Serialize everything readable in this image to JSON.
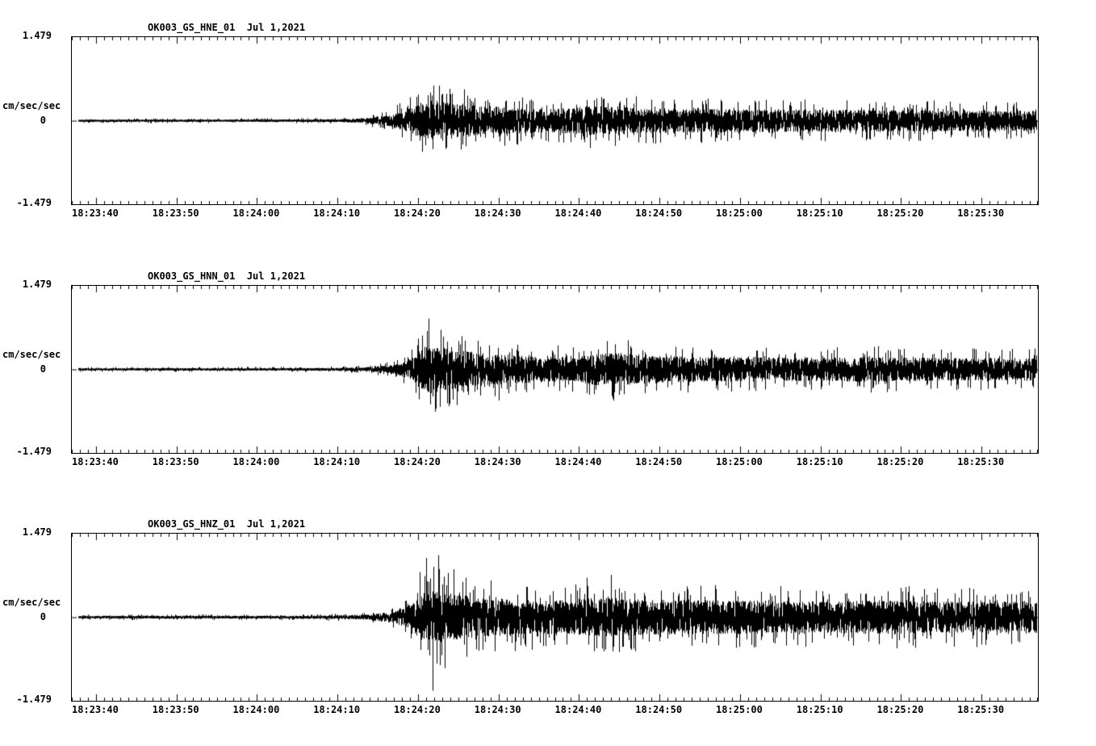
{
  "figure": {
    "background": "#ffffff",
    "trace_color": "#000000",
    "axis_color": "#000000"
  },
  "chart_data": [
    {
      "type": "line",
      "title": "OK003_GS_HNE_01  Jul 1,2021",
      "ylabel": "cm/sec/sec",
      "ylim": [
        -1.479,
        1.479
      ],
      "ytick_labels": {
        "top": "1.479",
        "zero": "0",
        "bottom": "-1.479"
      },
      "xtick_labels": [
        "18:23:40",
        "18:23:50",
        "18:24:00",
        "18:24:10",
        "18:24:20",
        "18:24:30",
        "18:24:40",
        "18:24:50",
        "18:25:00",
        "18:25:10",
        "18:25:20",
        "18:25:30"
      ],
      "time_window_seconds": 120,
      "first_tick_offset_seconds": 3,
      "major_tick_interval_seconds": 10,
      "minor_tick_interval_seconds": 1,
      "legend": "none",
      "grid": false,
      "seed": 11,
      "envelope": [
        [
          0,
          0.022
        ],
        [
          20,
          0.022
        ],
        [
          33,
          0.025
        ],
        [
          36,
          0.04
        ],
        [
          39,
          0.09
        ],
        [
          42,
          0.22
        ],
        [
          44,
          0.32
        ],
        [
          46,
          0.34
        ],
        [
          48,
          0.3
        ],
        [
          52,
          0.26
        ],
        [
          56,
          0.22
        ],
        [
          60,
          0.21
        ],
        [
          64,
          0.26
        ],
        [
          68,
          0.24
        ],
        [
          72,
          0.22
        ],
        [
          78,
          0.21
        ],
        [
          84,
          0.2
        ],
        [
          92,
          0.2
        ],
        [
          100,
          0.19
        ],
        [
          108,
          0.19
        ],
        [
          114,
          0.18
        ],
        [
          120,
          0.18
        ]
      ],
      "spikes": [
        [
          44.2,
          0.45
        ],
        [
          45.6,
          0.62
        ],
        [
          46.4,
          -0.5
        ],
        [
          47.2,
          0.48
        ],
        [
          48.5,
          -0.42
        ],
        [
          50,
          0.4
        ],
        [
          66,
          0.38
        ],
        [
          68,
          -0.35
        ],
        [
          99,
          0.3
        ],
        [
          117,
          0.3
        ]
      ]
    },
    {
      "type": "line",
      "title": "OK003_GS_HNN_01  Jul 1,2021",
      "ylabel": "cm/sec/sec",
      "ylim": [
        -1.479,
        1.479
      ],
      "ytick_labels": {
        "top": "1.479",
        "zero": "0",
        "bottom": "-1.479"
      },
      "xtick_labels": [
        "18:23:40",
        "18:23:50",
        "18:24:00",
        "18:24:10",
        "18:24:20",
        "18:24:30",
        "18:24:40",
        "18:24:50",
        "18:25:00",
        "18:25:10",
        "18:25:20",
        "18:25:30"
      ],
      "time_window_seconds": 120,
      "first_tick_offset_seconds": 3,
      "major_tick_interval_seconds": 10,
      "minor_tick_interval_seconds": 1,
      "legend": "none",
      "grid": false,
      "seed": 22,
      "envelope": [
        [
          0,
          0.022
        ],
        [
          30,
          0.024
        ],
        [
          36,
          0.035
        ],
        [
          40,
          0.08
        ],
        [
          42,
          0.18
        ],
        [
          43.5,
          0.38
        ],
        [
          45,
          0.42
        ],
        [
          47,
          0.36
        ],
        [
          50,
          0.3
        ],
        [
          54,
          0.26
        ],
        [
          58,
          0.23
        ],
        [
          62,
          0.22
        ],
        [
          65,
          0.28
        ],
        [
          67,
          0.3
        ],
        [
          70,
          0.26
        ],
        [
          75,
          0.23
        ],
        [
          82,
          0.22
        ],
        [
          90,
          0.21
        ],
        [
          98,
          0.22
        ],
        [
          105,
          0.21
        ],
        [
          112,
          0.2
        ],
        [
          120,
          0.2
        ]
      ],
      "spikes": [
        [
          43.5,
          0.6
        ],
        [
          44.3,
          0.9
        ],
        [
          45.1,
          -0.75
        ],
        [
          45.8,
          0.7
        ],
        [
          46.6,
          -0.6
        ],
        [
          48,
          0.5
        ],
        [
          53,
          -0.55
        ],
        [
          66.5,
          0.5
        ],
        [
          68,
          -0.45
        ],
        [
          75,
          0.4
        ],
        [
          95,
          0.35
        ],
        [
          108,
          0.35
        ]
      ]
    },
    {
      "type": "line",
      "title": "OK003_GS_HNZ_01  Jul 1,2021",
      "ylabel": "cm/sec/sec",
      "ylim": [
        -1.479,
        1.479
      ],
      "ytick_labels": {
        "top": "1.479",
        "zero": "0",
        "bottom": "-1.479"
      },
      "xtick_labels": [
        "18:23:40",
        "18:23:50",
        "18:24:00",
        "18:24:10",
        "18:24:20",
        "18:24:30",
        "18:24:40",
        "18:24:50",
        "18:25:00",
        "18:25:10",
        "18:25:20",
        "18:25:30"
      ],
      "time_window_seconds": 120,
      "first_tick_offset_seconds": 3,
      "major_tick_interval_seconds": 10,
      "minor_tick_interval_seconds": 1,
      "legend": "none",
      "grid": false,
      "seed": 33,
      "envelope": [
        [
          0,
          0.025
        ],
        [
          30,
          0.027
        ],
        [
          36,
          0.04
        ],
        [
          40,
          0.1
        ],
        [
          42,
          0.22
        ],
        [
          43.5,
          0.42
        ],
        [
          45,
          0.48
        ],
        [
          47,
          0.42
        ],
        [
          50,
          0.36
        ],
        [
          54,
          0.32
        ],
        [
          58,
          0.3
        ],
        [
          62,
          0.3
        ],
        [
          65,
          0.34
        ],
        [
          67,
          0.34
        ],
        [
          70,
          0.32
        ],
        [
          76,
          0.3
        ],
        [
          84,
          0.3
        ],
        [
          92,
          0.28
        ],
        [
          100,
          0.3
        ],
        [
          108,
          0.28
        ],
        [
          114,
          0.28
        ],
        [
          120,
          0.28
        ]
      ],
      "spikes": [
        [
          43.2,
          0.8
        ],
        [
          44.0,
          1.05
        ],
        [
          44.8,
          -1.3
        ],
        [
          45.5,
          1.1
        ],
        [
          46.3,
          -0.9
        ],
        [
          47.4,
          0.85
        ],
        [
          49,
          -0.7
        ],
        [
          52,
          0.65
        ],
        [
          55,
          -0.6
        ],
        [
          64,
          0.7
        ],
        [
          67,
          0.75
        ],
        [
          70,
          -0.6
        ],
        [
          80,
          0.5
        ],
        [
          88,
          0.55
        ],
        [
          97,
          -0.5
        ],
        [
          104,
          0.55
        ],
        [
          112,
          0.5
        ],
        [
          118,
          0.45
        ]
      ]
    }
  ]
}
